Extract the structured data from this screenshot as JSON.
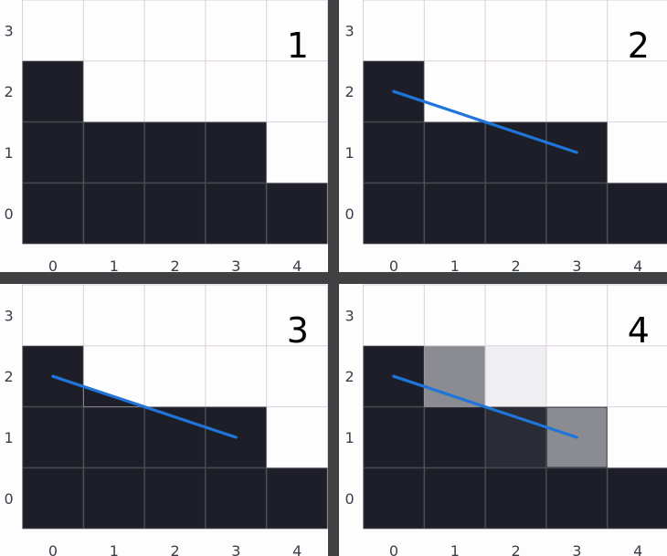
{
  "colors": {
    "background": "#fdfdfe",
    "dark": "#1d1e27",
    "grid_on_light": "#dbcfdb",
    "grid_on_dark": "#3a3c44",
    "divider": "#3f4143",
    "line": "#1f75d9"
  },
  "axis": {
    "x_ticks": [
      "0",
      "1",
      "2",
      "3",
      "4"
    ],
    "y_ticks": [
      "0",
      "1",
      "2",
      "3"
    ]
  },
  "panels": [
    {
      "number": "1",
      "column_heights": [
        3,
        2,
        2,
        2,
        1
      ],
      "line": null,
      "partial_cells": []
    },
    {
      "number": "2",
      "column_heights": [
        3,
        2,
        2,
        2,
        1
      ],
      "line": {
        "from": [
          0.5,
          2.5
        ],
        "to": [
          3.5,
          1.5
        ]
      },
      "partial_cells": []
    },
    {
      "number": "3",
      "column_heights": [
        3,
        2,
        2,
        2,
        1
      ],
      "line": {
        "from": [
          0.5,
          2.5
        ],
        "to": [
          3.5,
          1.5
        ]
      },
      "fill_below_line": true,
      "partial_cells": []
    },
    {
      "number": "4",
      "column_heights": [
        3,
        2,
        2,
        2,
        1
      ],
      "line": {
        "from": [
          0.5,
          2.5
        ],
        "to": [
          3.5,
          1.5
        ]
      },
      "partial_cells": [
        {
          "col": 1,
          "row": 2,
          "shade": "#8b8c92"
        },
        {
          "col": 2,
          "row": 2,
          "shade": "#efeff1"
        },
        {
          "col": 2,
          "row": 1,
          "shade": "#2a2b34"
        },
        {
          "col": 3,
          "row": 1,
          "shade": "#8b8c92"
        }
      ]
    }
  ]
}
